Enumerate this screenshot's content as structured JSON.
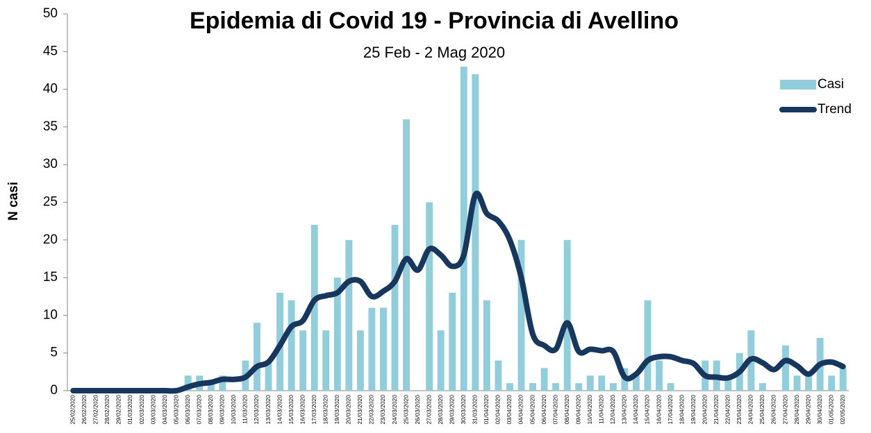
{
  "chart_data": {
    "type": "bar_line",
    "title": "Epidemia di Covid 19 - Provincia di Avellino",
    "subtitle": "25 Feb - 2 Mag 2020",
    "y_label": "N casi",
    "categories": [
      "25/02/2020",
      "26/02/2020",
      "27/02/2020",
      "28/02/2020",
      "29/02/2020",
      "01/03/2020",
      "02/03/2020",
      "03/03/2020",
      "04/03/2020",
      "05/03/2020",
      "06/03/2020",
      "07/03/2020",
      "08/03/2020",
      "09/03/2020",
      "10/03/2020",
      "11/03/2020",
      "12/03/2020",
      "13/03/2020",
      "14/03/2020",
      "15/03/2020",
      "16/03/2020",
      "17/03/2020",
      "18/03/2020",
      "19/03/2020",
      "20/03/2020",
      "21/03/2020",
      "22/03/2020",
      "23/03/2020",
      "24/03/2020",
      "25/03/2020",
      "26/03/2020",
      "27/03/2020",
      "28/03/2020",
      "29/03/2020",
      "30/03/2020",
      "31/03/2020",
      "01/04/2020",
      "02/04/2020",
      "03/04/2020",
      "04/04/2020",
      "05/04/2020",
      "06/04/2020",
      "07/04/2020",
      "08/04/2020",
      "09/04/2020",
      "10/04/2020",
      "11/04/2020",
      "12/04/2020",
      "13/04/2020",
      "14/04/2020",
      "15/04/2020",
      "16/04/2020",
      "17/04/2020",
      "18/04/2020",
      "19/04/2020",
      "20/04/2020",
      "21/04/2020",
      "22/04/2020",
      "23/04/2020",
      "24/04/2020",
      "25/04/2020",
      "26/04/2020",
      "27/04/2020",
      "28/04/2020",
      "29/04/2020",
      "30/04/2020",
      "01/05/2020",
      "02/05/2020"
    ],
    "series": [
      {
        "name": "Casi",
        "type": "bar",
        "color": "#92cddc",
        "values": [
          0,
          0,
          0,
          0,
          0,
          0,
          0,
          0,
          0,
          0,
          2,
          2,
          1,
          2,
          0,
          4,
          9,
          4,
          13,
          12,
          8,
          22,
          8,
          15,
          20,
          8,
          11,
          11,
          22,
          36,
          0,
          25,
          8,
          13,
          43,
          42,
          12,
          4,
          1,
          20,
          1,
          3,
          1,
          20,
          1,
          2,
          2,
          1,
          3,
          2,
          12,
          4,
          1,
          0,
          0,
          4,
          4,
          2,
          5,
          8,
          1,
          0,
          6,
          2,
          2,
          7,
          2,
          3
        ]
      },
      {
        "name": "Trend",
        "type": "line",
        "color": "#17375e",
        "values": [
          0,
          0,
          0,
          0,
          0,
          0,
          0,
          0,
          0,
          0,
          0.5,
          0.9,
          1.1,
          1.5,
          1.5,
          1.8,
          3.2,
          3.8,
          6,
          8.5,
          9.3,
          12,
          12.6,
          13,
          14.5,
          14.5,
          12.5,
          13.2,
          14.5,
          17.5,
          16,
          18.8,
          18,
          16.5,
          18,
          26,
          23.5,
          22.5,
          20,
          15,
          7.5,
          6,
          5.5,
          9,
          5.2,
          5.5,
          5.3,
          5.2,
          1.8,
          2.2,
          4,
          4.5,
          4.5,
          4,
          3.6,
          2,
          1.8,
          1.7,
          2.5,
          4.2,
          3.7,
          2.8,
          4,
          3.3,
          2.2,
          3.5,
          3.8,
          3.2
        ]
      }
    ],
    "ylim": [
      0,
      50
    ],
    "yticks": [
      0,
      5,
      10,
      15,
      20,
      25,
      30,
      35,
      40,
      45,
      50
    ],
    "legend": "right"
  }
}
